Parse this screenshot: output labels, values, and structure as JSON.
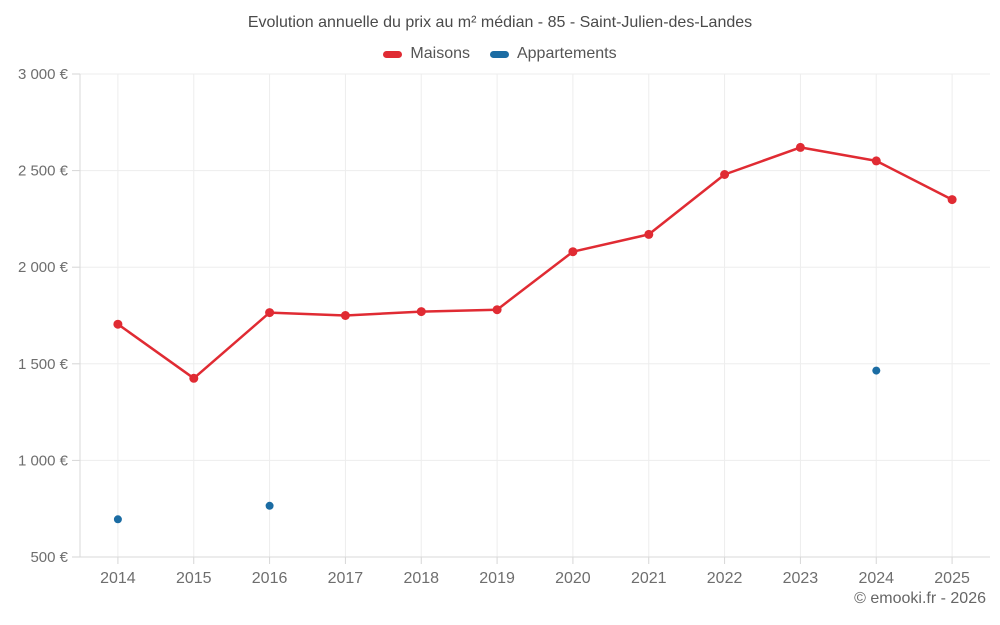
{
  "chart_data": {
    "type": "line",
    "title": "Evolution annuelle du prix au m² médian - 85 - Saint-Julien-des-Landes",
    "categories": [
      "2014",
      "2015",
      "2016",
      "2017",
      "2018",
      "2019",
      "2020",
      "2021",
      "2022",
      "2023",
      "2024",
      "2025"
    ],
    "series": [
      {
        "name": "Maisons",
        "color": "#e02b33",
        "style": "line-markers",
        "values": [
          1705,
          1425,
          1765,
          1750,
          1770,
          1780,
          2080,
          2170,
          2480,
          2620,
          2550,
          2350
        ]
      },
      {
        "name": "Appartements",
        "color": "#1b6ca3",
        "style": "markers-only",
        "values": [
          695,
          null,
          765,
          null,
          null,
          null,
          null,
          null,
          null,
          null,
          1465,
          null
        ]
      }
    ],
    "xlabel": "",
    "ylabel": "",
    "ylim": [
      500,
      3000
    ],
    "ytick_step": 500,
    "ytick_suffix": " €",
    "yticks": [
      "500 €",
      "1 000 €",
      "1 500 €",
      "2 000 €",
      "2 500 €",
      "3 000 €"
    ],
    "grid": true,
    "legend_position": "top",
    "credit": "© emooki.fr - 2026",
    "colors": {
      "grid": "#ededed",
      "axis": "#d9d9d9",
      "tick": "#d6d6d6",
      "tick_label": "#6e6e6e",
      "title_text": "#4a4a4a"
    }
  }
}
